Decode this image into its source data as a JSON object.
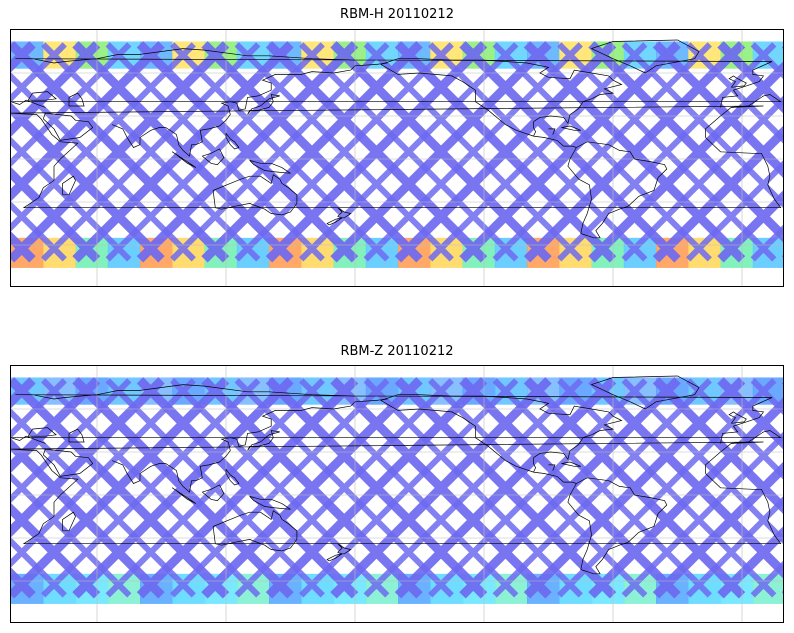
{
  "panels": [
    {
      "title": "RBM-H 20110212",
      "colors": {
        "swath": "#6e6af0",
        "north_band": [
          "#5fb2ff",
          "#62d3ff",
          "#8ff07a",
          "#ffe66a"
        ],
        "south_band": [
          "#ff9e57",
          "#ffd860",
          "#76efb5",
          "#5cc8ff"
        ]
      }
    },
    {
      "title": "RBM-Z 20110212",
      "colors": {
        "swath": "#6e6af0",
        "north_band": [
          "#5aa0ff",
          "#62c1ff",
          "#7ab8ff"
        ],
        "south_band": [
          "#5fd9ff",
          "#6ce6ff",
          "#7ff0d0",
          "#5aa8ff"
        ]
      }
    }
  ],
  "colors": {
    "coastline": "#000000",
    "gridline": "#bdbdbd",
    "frame": "#000000"
  }
}
